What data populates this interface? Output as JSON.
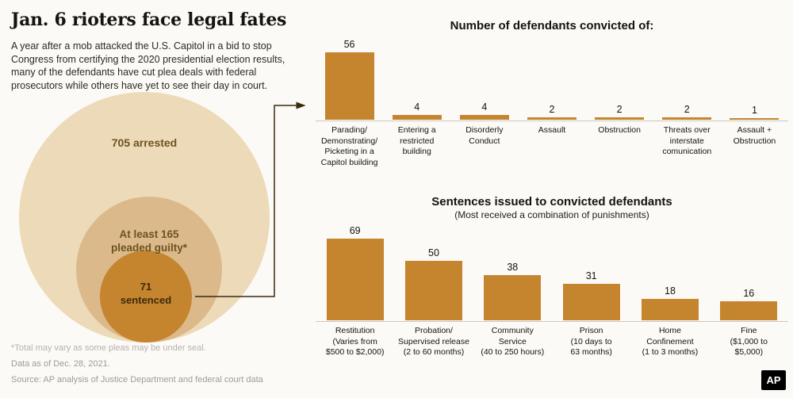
{
  "header": {
    "title": "Jan. 6 rioters face legal fates",
    "description": "A year after a mob attacked the U.S. Capitol in a bid to stop Congress from certifying the 2020 presidential election results, many of the defendants have cut plea deals with federal prosecutors while others have yet to see their day in court."
  },
  "circles": {
    "outer_label": "705 arrested",
    "middle_label": "At least 165\npleaded guilty*",
    "inner_label": "71\nsentenced"
  },
  "footnotes": {
    "seal_note": "*Total may vary as some pleas may be under seal.",
    "data_as_of": "Data as of Dec. 28, 2021.",
    "source": "Source: AP analysis of Justice Department and federal court data"
  },
  "logo": {
    "text": "AP"
  },
  "colors": {
    "bar": "#c5842e",
    "circle_outer": "#eddab8",
    "circle_middle": "#dcb98a",
    "circle_inner": "#c5842e",
    "arrow": "#3a2a10",
    "background": "#fcfaf6"
  },
  "chart_data": [
    {
      "type": "bar",
      "title": "Number of defendants convicted of:",
      "categories": [
        "Parading/\nDemonstrating/\nPicketing in a\nCapitol building",
        "Entering a\nrestricted\nbuilding",
        "Disorderly\nConduct",
        "Assault",
        "Obstruction",
        "Threats over\ninterstate\ncomunication",
        "Assault +\nObstruction"
      ],
      "values": [
        56,
        4,
        4,
        2,
        2,
        2,
        1
      ],
      "xlabel": "",
      "ylabel": "",
      "legend": false,
      "grid": false
    },
    {
      "type": "bar",
      "title": "Sentences issued to convicted defendants",
      "subtitle": "(Most received a combination of punishments)",
      "categories": [
        "Restitution\n(Varies from\n$500 to $2,000)",
        "Probation/\nSupervised release\n(2 to 60 months)",
        "Community\nService\n(40 to 250 hours)",
        "Prison\n(10 days to\n63 months)",
        "Home\nConfinement\n(1 to 3 months)",
        "Fine\n($1,000 to\n$5,000)"
      ],
      "values": [
        69,
        50,
        38,
        31,
        18,
        16
      ],
      "xlabel": "",
      "ylabel": "",
      "legend": false,
      "grid": false
    }
  ]
}
